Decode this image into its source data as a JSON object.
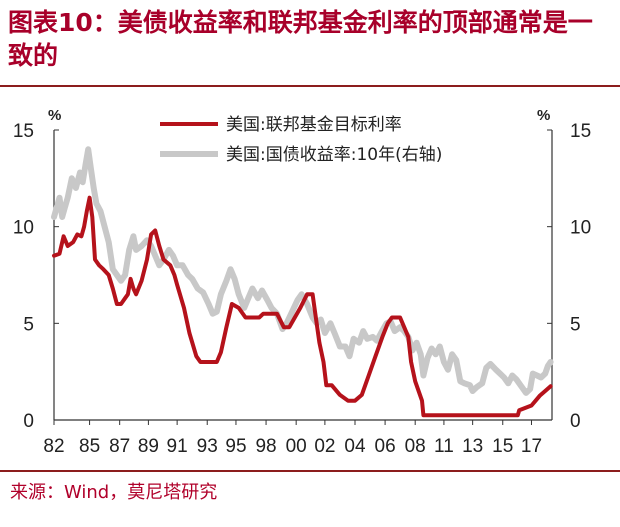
{
  "title": "图表10：美债收益率和联邦基金利率的顶部通常是一致的",
  "source": "来源：Wind，莫尼塔研究",
  "chart_data": {
    "type": "line",
    "y_left": {
      "range": [
        0,
        15
      ],
      "ticks": [
        0,
        5,
        10,
        15
      ],
      "unit": "%"
    },
    "y_right": {
      "range": [
        0,
        15
      ],
      "ticks": [
        0,
        5,
        10,
        15
      ],
      "unit": "%"
    },
    "x_range": [
      1982,
      2018.4
    ],
    "x_tick_labels": [
      "82",
      "85",
      "87",
      "89",
      "91",
      "93",
      "95",
      "98",
      "00",
      "02",
      "04",
      "06",
      "08",
      "11",
      "13",
      "15",
      "17"
    ],
    "x_tick_values": [
      1982,
      1984.6,
      1986.8,
      1988.9,
      1991,
      1993.2,
      1995.3,
      1997.5,
      1999.7,
      2001.8,
      2004,
      2006.2,
      2008.4,
      2010.5,
      2012.6,
      2014.8,
      2016.9
    ],
    "legend_position": "top-center",
    "series": [
      {
        "name": "美国:联邦基金目标利率",
        "axis": "left",
        "color": "#b5121b",
        "points": [
          [
            1982.0,
            8.5
          ],
          [
            1982.4,
            8.6
          ],
          [
            1982.7,
            9.5
          ],
          [
            1983.0,
            9.0
          ],
          [
            1983.4,
            9.2
          ],
          [
            1983.7,
            9.6
          ],
          [
            1984.0,
            9.5
          ],
          [
            1984.2,
            10.0
          ],
          [
            1984.4,
            10.8
          ],
          [
            1984.6,
            11.5
          ],
          [
            1984.8,
            10.5
          ],
          [
            1985.0,
            8.3
          ],
          [
            1985.3,
            8.0
          ],
          [
            1985.6,
            7.8
          ],
          [
            1986.0,
            7.5
          ],
          [
            1986.3,
            6.8
          ],
          [
            1986.6,
            6.0
          ],
          [
            1986.9,
            6.0
          ],
          [
            1987.2,
            6.3
          ],
          [
            1987.4,
            6.5
          ],
          [
            1987.6,
            7.3
          ],
          [
            1987.8,
            6.8
          ],
          [
            1988.0,
            6.5
          ],
          [
            1988.4,
            7.2
          ],
          [
            1988.8,
            8.3
          ],
          [
            1989.1,
            9.6
          ],
          [
            1989.4,
            9.8
          ],
          [
            1989.7,
            9.0
          ],
          [
            1990.0,
            8.3
          ],
          [
            1990.5,
            8.0
          ],
          [
            1990.8,
            7.5
          ],
          [
            1991.0,
            7.0
          ],
          [
            1991.5,
            5.8
          ],
          [
            1991.9,
            4.5
          ],
          [
            1992.4,
            3.3
          ],
          [
            1992.7,
            3.0
          ],
          [
            1993.0,
            3.0
          ],
          [
            1993.5,
            3.0
          ],
          [
            1993.9,
            3.0
          ],
          [
            1994.2,
            3.5
          ],
          [
            1994.6,
            4.8
          ],
          [
            1995.0,
            6.0
          ],
          [
            1995.5,
            5.8
          ],
          [
            1996.0,
            5.3
          ],
          [
            1996.5,
            5.3
          ],
          [
            1997.0,
            5.3
          ],
          [
            1997.3,
            5.5
          ],
          [
            1997.8,
            5.5
          ],
          [
            1998.3,
            5.5
          ],
          [
            1998.8,
            4.8
          ],
          [
            1999.2,
            4.8
          ],
          [
            1999.6,
            5.3
          ],
          [
            2000.0,
            5.8
          ],
          [
            2000.5,
            6.5
          ],
          [
            2000.9,
            6.5
          ],
          [
            2001.1,
            5.5
          ],
          [
            2001.4,
            4.0
          ],
          [
            2001.7,
            3.0
          ],
          [
            2001.9,
            1.8
          ],
          [
            2002.3,
            1.8
          ],
          [
            2002.9,
            1.3
          ],
          [
            2003.5,
            1.0
          ],
          [
            2004.0,
            1.0
          ],
          [
            2004.5,
            1.3
          ],
          [
            2005.0,
            2.3
          ],
          [
            2005.5,
            3.3
          ],
          [
            2006.0,
            4.3
          ],
          [
            2006.4,
            5.0
          ],
          [
            2006.7,
            5.3
          ],
          [
            2007.3,
            5.3
          ],
          [
            2007.6,
            4.8
          ],
          [
            2007.9,
            4.3
          ],
          [
            2008.1,
            3.0
          ],
          [
            2008.4,
            2.0
          ],
          [
            2008.9,
            1.0
          ],
          [
            2009.0,
            0.25
          ],
          [
            2011.0,
            0.25
          ],
          [
            2013.0,
            0.25
          ],
          [
            2015.9,
            0.25
          ],
          [
            2016.0,
            0.5
          ],
          [
            2016.9,
            0.75
          ],
          [
            2017.2,
            1.0
          ],
          [
            2017.5,
            1.25
          ],
          [
            2017.9,
            1.5
          ],
          [
            2018.3,
            1.75
          ]
        ]
      },
      {
        "name": "美国:国债收益率:10年(右轴)",
        "axis": "right",
        "color": "#c8c8c8",
        "points": [
          [
            1982.0,
            10.5
          ],
          [
            1982.4,
            11.5
          ],
          [
            1982.6,
            10.5
          ],
          [
            1982.8,
            11.0
          ],
          [
            1983.0,
            11.5
          ],
          [
            1983.3,
            12.5
          ],
          [
            1983.6,
            12.0
          ],
          [
            1983.9,
            12.8
          ],
          [
            1984.1,
            12.3
          ],
          [
            1984.3,
            13.2
          ],
          [
            1984.5,
            14.0
          ],
          [
            1984.7,
            13.0
          ],
          [
            1984.9,
            12.0
          ],
          [
            1985.1,
            11.2
          ],
          [
            1985.4,
            10.8
          ],
          [
            1985.7,
            10.0
          ],
          [
            1986.0,
            9.2
          ],
          [
            1986.3,
            7.8
          ],
          [
            1986.6,
            7.5
          ],
          [
            1986.9,
            7.2
          ],
          [
            1987.2,
            7.5
          ],
          [
            1987.5,
            8.8
          ],
          [
            1987.8,
            9.5
          ],
          [
            1988.0,
            8.8
          ],
          [
            1988.4,
            9.0
          ],
          [
            1988.8,
            9.3
          ],
          [
            1989.1,
            9.0
          ],
          [
            1989.4,
            8.5
          ],
          [
            1989.7,
            8.0
          ],
          [
            1990.0,
            8.3
          ],
          [
            1990.4,
            8.8
          ],
          [
            1990.7,
            8.5
          ],
          [
            1991.0,
            8.0
          ],
          [
            1991.4,
            8.0
          ],
          [
            1991.8,
            7.5
          ],
          [
            1992.1,
            7.3
          ],
          [
            1992.5,
            6.8
          ],
          [
            1992.9,
            6.6
          ],
          [
            1993.3,
            6.0
          ],
          [
            1993.6,
            5.5
          ],
          [
            1993.9,
            5.6
          ],
          [
            1994.2,
            6.5
          ],
          [
            1994.6,
            7.2
          ],
          [
            1994.9,
            7.8
          ],
          [
            1995.2,
            7.3
          ],
          [
            1995.5,
            6.5
          ],
          [
            1995.9,
            5.8
          ],
          [
            1996.2,
            6.3
          ],
          [
            1996.5,
            6.8
          ],
          [
            1996.9,
            6.3
          ],
          [
            1997.2,
            6.7
          ],
          [
            1997.6,
            6.2
          ],
          [
            1997.9,
            5.8
          ],
          [
            1998.3,
            5.5
          ],
          [
            1998.7,
            4.7
          ],
          [
            1999.0,
            5.0
          ],
          [
            1999.4,
            5.6
          ],
          [
            1999.8,
            6.2
          ],
          [
            2000.1,
            6.5
          ],
          [
            2000.5,
            6.0
          ],
          [
            2000.9,
            5.3
          ],
          [
            2001.2,
            5.0
          ],
          [
            2001.5,
            5.2
          ],
          [
            2001.8,
            4.5
          ],
          [
            2002.2,
            5.0
          ],
          [
            2002.5,
            4.5
          ],
          [
            2002.9,
            3.8
          ],
          [
            2003.3,
            3.8
          ],
          [
            2003.6,
            3.3
          ],
          [
            2003.9,
            4.2
          ],
          [
            2004.3,
            4.0
          ],
          [
            2004.6,
            4.6
          ],
          [
            2004.9,
            4.2
          ],
          [
            2005.3,
            4.3
          ],
          [
            2005.6,
            4.1
          ],
          [
            2005.9,
            4.5
          ],
          [
            2006.3,
            5.0
          ],
          [
            2006.6,
            5.1
          ],
          [
            2006.9,
            4.6
          ],
          [
            2007.3,
            4.8
          ],
          [
            2007.6,
            4.6
          ],
          [
            2007.9,
            4.3
          ],
          [
            2008.2,
            3.6
          ],
          [
            2008.5,
            4.0
          ],
          [
            2008.8,
            3.4
          ],
          [
            2009.0,
            2.3
          ],
          [
            2009.3,
            3.2
          ],
          [
            2009.6,
            3.7
          ],
          [
            2009.9,
            3.4
          ],
          [
            2010.2,
            3.8
          ],
          [
            2010.5,
            3.0
          ],
          [
            2010.8,
            2.6
          ],
          [
            2011.1,
            3.4
          ],
          [
            2011.4,
            3.1
          ],
          [
            2011.7,
            2.0
          ],
          [
            2012.0,
            1.9
          ],
          [
            2012.4,
            1.8
          ],
          [
            2012.6,
            1.5
          ],
          [
            2012.9,
            1.7
          ],
          [
            2013.3,
            1.9
          ],
          [
            2013.6,
            2.7
          ],
          [
            2013.9,
            2.9
          ],
          [
            2014.3,
            2.6
          ],
          [
            2014.6,
            2.4
          ],
          [
            2014.9,
            2.2
          ],
          [
            2015.2,
            1.9
          ],
          [
            2015.5,
            2.3
          ],
          [
            2015.8,
            2.1
          ],
          [
            2016.1,
            1.8
          ],
          [
            2016.5,
            1.4
          ],
          [
            2016.8,
            1.6
          ],
          [
            2017.0,
            2.4
          ],
          [
            2017.3,
            2.3
          ],
          [
            2017.6,
            2.2
          ],
          [
            2017.9,
            2.4
          ],
          [
            2018.1,
            2.8
          ],
          [
            2018.3,
            3.0
          ]
        ]
      }
    ]
  }
}
